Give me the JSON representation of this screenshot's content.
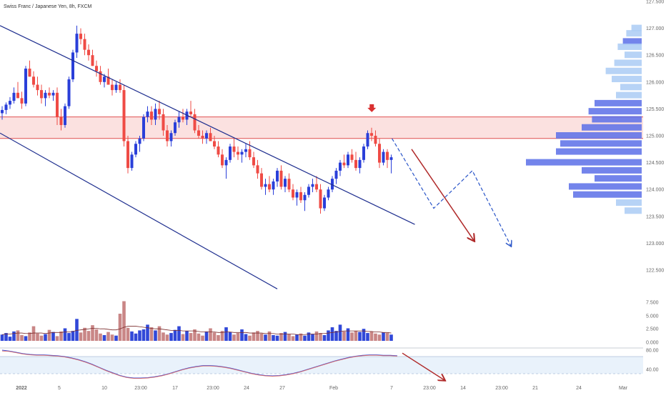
{
  "header": {
    "title": "Swiss Franc / Japanese Yen, 8h, FXCM"
  },
  "colors": {
    "up": "#2a3fd9",
    "down": "#ef4b45",
    "channel": "#1f2f8f",
    "zone_fill": "#fbe1e0",
    "zone_line": "#e05050",
    "arrow": "#b02a2a",
    "dashed": "#2a55c8",
    "vp_dark": "#5a6ee8",
    "vp_light": "#aacbf5",
    "vol_up": "#3148d8",
    "vol_down": "#c98686",
    "osc_fill": "#e9f2fb"
  },
  "chart_data": [
    {
      "type": "candlestick",
      "title": "Swiss Franc / Japanese Yen, 8h, FXCM",
      "y_ticks": [
        "127.500",
        "127.000",
        "126.500",
        "126.000",
        "125.500",
        "125.000",
        "124.500",
        "124.000",
        "123.500",
        "123.000",
        "122.500"
      ],
      "x_ticks": [
        "2022",
        "5",
        "10",
        "23:00",
        "17",
        "23:00",
        "24",
        "27",
        "Feb",
        "7",
        "23:00",
        "14",
        "23:00",
        "21",
        "24",
        "Mar"
      ],
      "resistance_zone": [
        124.95,
        125.35
      ],
      "channel_upper": {
        "from": [
          0,
          127.05
        ],
        "to": [
          105,
          123.35
        ]
      },
      "channel_lower": {
        "from": [
          0,
          125.05
        ],
        "to": [
          70,
          122.15
        ]
      },
      "projection_arrow": {
        "from": [
          66,
          124.75
        ],
        "to": [
          75.5,
          123.05
        ]
      },
      "projection_path": [
        [
          61,
          124.95
        ],
        [
          67.5,
          123.65
        ],
        [
          73.5,
          124.35
        ],
        [
          79.5,
          122.95
        ]
      ],
      "marker_arrow": {
        "at": [
          59.5,
          125.4
        ]
      },
      "candles": [
        [
          125.42,
          125.55,
          125.3,
          125.48
        ],
        [
          125.48,
          125.62,
          125.4,
          125.58
        ],
        [
          125.58,
          125.72,
          125.5,
          125.65
        ],
        [
          125.65,
          125.9,
          125.6,
          125.8
        ],
        [
          125.8,
          126.0,
          125.7,
          125.7
        ],
        [
          125.7,
          125.82,
          125.5,
          125.6
        ],
        [
          125.6,
          126.3,
          125.55,
          126.25
        ],
        [
          126.25,
          126.4,
          126.1,
          126.1
        ],
        [
          126.1,
          126.2,
          125.9,
          125.95
        ],
        [
          125.95,
          126.1,
          125.75,
          125.85
        ],
        [
          125.85,
          125.95,
          125.6,
          125.7
        ],
        [
          125.7,
          125.85,
          125.55,
          125.8
        ],
        [
          125.8,
          125.9,
          125.7,
          125.75
        ],
        [
          125.75,
          125.85,
          125.65,
          125.8
        ],
        [
          125.8,
          125.9,
          125.2,
          125.35
        ],
        [
          125.35,
          125.5,
          125.1,
          125.2
        ],
        [
          125.2,
          125.6,
          125.15,
          125.55
        ],
        [
          125.55,
          126.1,
          125.5,
          126.05
        ],
        [
          126.05,
          126.6,
          126.0,
          126.55
        ],
        [
          126.55,
          127.05,
          126.45,
          126.9
        ],
        [
          126.9,
          127.0,
          126.7,
          126.8
        ],
        [
          126.8,
          126.9,
          126.5,
          126.6
        ],
        [
          126.6,
          126.7,
          126.4,
          126.5
        ],
        [
          126.5,
          126.6,
          126.3,
          126.3
        ],
        [
          126.3,
          126.4,
          126.1,
          126.2
        ],
        [
          126.2,
          126.3,
          125.95,
          126.0
        ],
        [
          126.0,
          126.15,
          125.9,
          126.1
        ],
        [
          126.1,
          126.25,
          125.95,
          125.95
        ],
        [
          125.95,
          126.05,
          125.75,
          125.85
        ],
        [
          125.85,
          126.0,
          125.8,
          125.95
        ],
        [
          125.95,
          126.05,
          125.8,
          125.85
        ],
        [
          125.85,
          125.95,
          124.8,
          124.9
        ],
        [
          124.9,
          125.0,
          124.3,
          124.4
        ],
        [
          124.4,
          124.7,
          124.35,
          124.65
        ],
        [
          124.65,
          124.9,
          124.6,
          124.85
        ],
        [
          124.85,
          125.0,
          124.7,
          124.95
        ],
        [
          124.95,
          125.4,
          124.9,
          125.35
        ],
        [
          125.35,
          125.55,
          125.25,
          125.45
        ],
        [
          125.45,
          125.55,
          125.2,
          125.3
        ],
        [
          125.3,
          125.6,
          125.2,
          125.5
        ],
        [
          125.5,
          125.65,
          125.3,
          125.4
        ],
        [
          125.4,
          125.5,
          125.0,
          125.1
        ],
        [
          125.1,
          125.2,
          124.8,
          124.9
        ],
        [
          124.9,
          125.1,
          124.8,
          125.05
        ],
        [
          125.05,
          125.3,
          125.0,
          125.25
        ],
        [
          125.25,
          125.45,
          125.15,
          125.35
        ],
        [
          125.35,
          125.5,
          125.25,
          125.3
        ],
        [
          125.3,
          125.5,
          125.2,
          125.45
        ],
        [
          125.45,
          125.65,
          125.35,
          125.4
        ],
        [
          125.4,
          125.5,
          125.05,
          125.1
        ],
        [
          125.1,
          125.2,
          124.95,
          125.0
        ],
        [
          125.0,
          125.1,
          124.85,
          124.95
        ],
        [
          124.95,
          125.1,
          124.85,
          125.05
        ],
        [
          125.05,
          125.15,
          124.9,
          124.9
        ],
        [
          124.9,
          125.0,
          124.75,
          124.8
        ],
        [
          124.8,
          124.9,
          124.6,
          124.65
        ],
        [
          124.65,
          124.75,
          124.4,
          124.45
        ],
        [
          124.45,
          124.6,
          124.2,
          124.55
        ],
        [
          124.55,
          124.85,
          124.5,
          124.8
        ],
        [
          124.8,
          124.95,
          124.6,
          124.7
        ],
        [
          124.7,
          124.8,
          124.55,
          124.65
        ],
        [
          124.65,
          124.75,
          124.5,
          124.7
        ],
        [
          124.7,
          124.85,
          124.6,
          124.75
        ],
        [
          124.75,
          124.9,
          124.55,
          124.6
        ],
        [
          124.6,
          124.7,
          124.4,
          124.45
        ],
        [
          124.45,
          124.55,
          124.2,
          124.3
        ],
        [
          124.3,
          124.4,
          124.0,
          124.05
        ],
        [
          124.05,
          124.2,
          123.9,
          124.1
        ],
        [
          124.1,
          124.25,
          123.95,
          124.0
        ],
        [
          124.0,
          124.2,
          123.9,
          124.15
        ],
        [
          124.15,
          124.4,
          124.05,
          124.35
        ],
        [
          124.35,
          124.45,
          124.0,
          124.05
        ],
        [
          124.05,
          124.25,
          123.95,
          124.2
        ],
        [
          124.2,
          124.3,
          123.95,
          124.0
        ],
        [
          124.0,
          124.1,
          123.8,
          123.85
        ],
        [
          123.85,
          124.0,
          123.7,
          123.95
        ],
        [
          123.95,
          124.05,
          123.75,
          123.8
        ],
        [
          123.8,
          123.95,
          123.6,
          123.9
        ],
        [
          123.9,
          124.1,
          123.85,
          124.05
        ],
        [
          124.05,
          124.2,
          123.95,
          124.1
        ],
        [
          124.1,
          124.25,
          123.95,
          124.0
        ],
        [
          124.0,
          124.1,
          123.55,
          123.65
        ],
        [
          123.65,
          123.9,
          123.6,
          123.85
        ],
        [
          123.85,
          124.05,
          123.8,
          124.0
        ],
        [
          124.0,
          124.25,
          123.95,
          124.2
        ],
        [
          124.2,
          124.4,
          124.1,
          124.35
        ],
        [
          124.35,
          124.55,
          124.25,
          124.5
        ],
        [
          124.5,
          124.65,
          124.4,
          124.45
        ],
        [
          124.45,
          124.7,
          124.4,
          124.65
        ],
        [
          124.65,
          124.75,
          124.5,
          124.55
        ],
        [
          124.55,
          124.7,
          124.35,
          124.4
        ],
        [
          124.4,
          124.6,
          124.3,
          124.55
        ],
        [
          124.55,
          124.85,
          124.5,
          124.8
        ],
        [
          124.8,
          125.1,
          124.75,
          125.05
        ],
        [
          125.05,
          125.15,
          124.9,
          125.0
        ],
        [
          125.0,
          125.1,
          124.8,
          124.85
        ],
        [
          124.85,
          124.95,
          124.4,
          124.5
        ],
        [
          124.5,
          124.75,
          124.45,
          124.7
        ],
        [
          124.7,
          124.75,
          124.4,
          124.55
        ],
        [
          124.55,
          124.65,
          124.3,
          124.6
        ]
      ],
      "volume_profile": [
        {
          "price": 127.0,
          "volume": 0.12,
          "dark": false
        },
        {
          "price": 126.9,
          "volume": 0.18,
          "dark": false
        },
        {
          "price": 126.75,
          "volume": 0.22,
          "dark": true
        },
        {
          "price": 126.65,
          "volume": 0.28,
          "dark": false
        },
        {
          "price": 126.5,
          "volume": 0.2,
          "dark": false
        },
        {
          "price": 126.35,
          "volume": 0.32,
          "dark": false
        },
        {
          "price": 126.2,
          "volume": 0.42,
          "dark": false
        },
        {
          "price": 126.05,
          "volume": 0.35,
          "dark": false
        },
        {
          "price": 125.9,
          "volume": 0.25,
          "dark": false
        },
        {
          "price": 125.75,
          "volume": 0.3,
          "dark": false
        },
        {
          "price": 125.6,
          "volume": 0.55,
          "dark": true
        },
        {
          "price": 125.45,
          "volume": 0.62,
          "dark": true
        },
        {
          "price": 125.3,
          "volume": 0.58,
          "dark": true
        },
        {
          "price": 125.15,
          "volume": 0.7,
          "dark": true
        },
        {
          "price": 125.0,
          "volume": 1.0,
          "dark": true
        },
        {
          "price": 124.85,
          "volume": 0.95,
          "dark": true
        },
        {
          "price": 124.7,
          "volume": 1.0,
          "dark": true
        },
        {
          "price": 124.5,
          "volume": 1.35,
          "dark": true
        },
        {
          "price": 124.35,
          "volume": 0.7,
          "dark": true
        },
        {
          "price": 124.2,
          "volume": 0.55,
          "dark": true
        },
        {
          "price": 124.05,
          "volume": 0.85,
          "dark": true
        },
        {
          "price": 123.9,
          "volume": 0.8,
          "dark": true
        },
        {
          "price": 123.75,
          "volume": 0.3,
          "dark": false
        },
        {
          "price": 123.6,
          "volume": 0.2,
          "dark": false
        }
      ]
    },
    {
      "type": "bar",
      "title": "Volume",
      "y_ticks": [
        "7.500",
        "5.000",
        "2.500",
        "0.000"
      ],
      "values": [
        1.2,
        1.5,
        0.8,
        1.8,
        2.0,
        1.1,
        0.9,
        1.6,
        2.8,
        1.4,
        1.0,
        1.3,
        2.1,
        1.7,
        0.9,
        1.8,
        2.4,
        1.5,
        1.9,
        4.2,
        1.6,
        2.5,
        1.9,
        3.0,
        2.2,
        1.4,
        1.1,
        1.7,
        1.2,
        1.0,
        5.2,
        7.6,
        2.5,
        1.8,
        1.4,
        2.0,
        2.2,
        3.1,
        2.6,
        2.0,
        2.8,
        1.6,
        1.2,
        1.5,
        2.1,
        2.8,
        1.3,
        1.9,
        1.5,
        2.2,
        1.4,
        1.0,
        1.8,
        2.4,
        1.6,
        1.1,
        1.9,
        2.6,
        1.7,
        1.2,
        1.5,
        2.2,
        1.3,
        1.0,
        1.6,
        1.9,
        1.4,
        1.2,
        1.8,
        1.1,
        1.0,
        1.5,
        1.7,
        1.3,
        0.9,
        1.2,
        1.4,
        1.0,
        1.6,
        1.3,
        1.8,
        1.5,
        1.1,
        2.0,
        2.6,
        1.9,
        3.1,
        1.8,
        2.4,
        1.6,
        1.9,
        1.7,
        2.3,
        1.5,
        1.8,
        1.4,
        1.2,
        1.6,
        1.5,
        1.2
      ],
      "moving_average": [
        1.2,
        1.3,
        1.3,
        1.4,
        1.5,
        1.5,
        1.4,
        1.4,
        1.5,
        1.5,
        1.5,
        1.4,
        1.5,
        1.6,
        1.6,
        1.6,
        1.7,
        1.7,
        1.8,
        2.0,
        2.1,
        2.2,
        2.3,
        2.4,
        2.4,
        2.3,
        2.3,
        2.2,
        2.1,
        2.1,
        2.3,
        2.6,
        2.8,
        2.8,
        2.8,
        2.7,
        2.6,
        2.5,
        2.4,
        2.3,
        2.3,
        2.2,
        2.1,
        2.0,
        2.0,
        2.0,
        1.9,
        1.9,
        1.9,
        1.9,
        1.8,
        1.7,
        1.7,
        1.7,
        1.7,
        1.6,
        1.6,
        1.7,
        1.7,
        1.6,
        1.6,
        1.6,
        1.6,
        1.5,
        1.5,
        1.5,
        1.5,
        1.4,
        1.4,
        1.4,
        1.3,
        1.3,
        1.3,
        1.3,
        1.3,
        1.2,
        1.2,
        1.2,
        1.3,
        1.3,
        1.3,
        1.4,
        1.4,
        1.5,
        1.6,
        1.7,
        1.8,
        1.9,
        1.9,
        1.9,
        1.9,
        1.9,
        1.9,
        1.8,
        1.8,
        1.7,
        1.7,
        1.6,
        1.6,
        1.5
      ]
    },
    {
      "type": "line",
      "title": "Oscillator",
      "y_ticks": [
        "80.00",
        "40.00"
      ],
      "series": [
        {
          "values": [
            95,
            93,
            90,
            87,
            85,
            84,
            84,
            83,
            82,
            80,
            77,
            73,
            68,
            62,
            55,
            48,
            42,
            36,
            32,
            30,
            30,
            31,
            33,
            36,
            40,
            45,
            50,
            54,
            57,
            59,
            59,
            58,
            56,
            53,
            49,
            45,
            41,
            38,
            36,
            35,
            36,
            38,
            41,
            45,
            50,
            55,
            60,
            65,
            70,
            74,
            78,
            81,
            83,
            84,
            84,
            83,
            83,
            82
          ]
        },
        {
          "values": [
            93,
            92,
            89,
            86,
            84,
            83,
            83,
            82,
            81,
            79,
            76,
            72,
            67,
            61,
            54,
            47,
            41,
            35,
            31,
            29,
            29,
            30,
            32,
            35,
            39,
            44,
            49,
            53,
            56,
            58,
            58,
            57,
            55,
            52,
            48,
            44,
            40,
            37,
            35,
            34,
            35,
            37,
            40,
            44,
            49,
            54,
            59,
            64,
            69,
            73,
            77,
            80,
            82,
            83,
            83,
            82,
            82,
            81
          ]
        }
      ],
      "projection_arrow": {
        "from": [
          0,
          88
        ],
        "to": [
          10,
          20
        ]
      }
    }
  ]
}
